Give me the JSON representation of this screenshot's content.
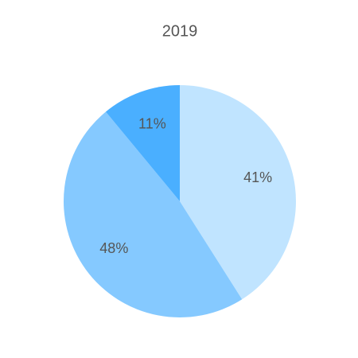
{
  "chart_data": {
    "type": "pie",
    "title": "2019",
    "values": [
      41,
      48,
      11
    ],
    "value_labels": [
      "41%",
      "48%",
      "11%"
    ],
    "colors": [
      "#c0e4ff",
      "#85c9ff",
      "#4aafff"
    ]
  }
}
